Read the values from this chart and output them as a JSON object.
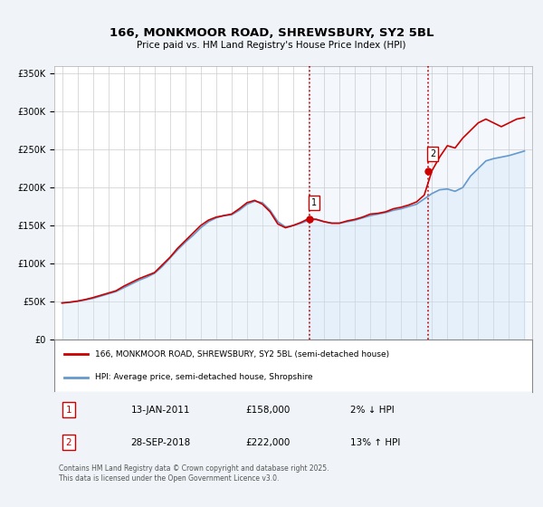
{
  "title": "166, MONKMOOR ROAD, SHREWSBURY, SY2 5BL",
  "subtitle": "Price paid vs. HM Land Registry's House Price Index (HPI)",
  "background_color": "#f0f4f8",
  "plot_bg_color": "#ffffff",
  "hpi_fill_color": "#d0e8f8",
  "red_color": "#cc0000",
  "blue_color": "#6699cc",
  "marker_color": "#cc0000",
  "vline_color": "#cc0000",
  "grid_color": "#cccccc",
  "ylim": [
    0,
    360000
  ],
  "yticks": [
    0,
    50000,
    100000,
    150000,
    200000,
    250000,
    300000,
    350000
  ],
  "ytick_labels": [
    "£0",
    "£50K",
    "£100K",
    "£150K",
    "£200K",
    "£250K",
    "£300K",
    "£350K"
  ],
  "xlim_start": 1994.5,
  "xlim_end": 2025.5,
  "xticks": [
    1995,
    1996,
    1997,
    1998,
    1999,
    2000,
    2001,
    2002,
    2003,
    2004,
    2005,
    2006,
    2007,
    2008,
    2009,
    2010,
    2011,
    2012,
    2013,
    2014,
    2015,
    2016,
    2017,
    2018,
    2019,
    2020,
    2021,
    2022,
    2023,
    2024,
    2025
  ],
  "event1_x": 2011.04,
  "event1_y": 158000,
  "event2_x": 2018.75,
  "event2_y": 222000,
  "legend_red_label": "166, MONKMOOR ROAD, SHREWSBURY, SY2 5BL (semi-detached house)",
  "legend_blue_label": "HPI: Average price, semi-detached house, Shropshire",
  "table_row1": [
    "1",
    "13-JAN-2011",
    "£158,000",
    "2% ↓ HPI"
  ],
  "table_row2": [
    "2",
    "28-SEP-2018",
    "£222,000",
    "13% ↑ HPI"
  ],
  "footer": "Contains HM Land Registry data © Crown copyright and database right 2025.\nThis data is licensed under the Open Government Licence v3.0.",
  "hpi_data_x": [
    1995.0,
    1995.5,
    1996.0,
    1996.5,
    1997.0,
    1997.5,
    1998.0,
    1998.5,
    1999.0,
    1999.5,
    2000.0,
    2000.5,
    2001.0,
    2001.5,
    2002.0,
    2002.5,
    2003.0,
    2003.5,
    2004.0,
    2004.5,
    2005.0,
    2005.5,
    2006.0,
    2006.5,
    2007.0,
    2007.5,
    2008.0,
    2008.5,
    2009.0,
    2009.5,
    2010.0,
    2010.5,
    2011.0,
    2011.5,
    2012.0,
    2012.5,
    2013.0,
    2013.5,
    2014.0,
    2014.5,
    2015.0,
    2015.5,
    2016.0,
    2016.5,
    2017.0,
    2017.5,
    2018.0,
    2018.5,
    2019.0,
    2019.5,
    2020.0,
    2020.5,
    2021.0,
    2021.5,
    2022.0,
    2022.5,
    2023.0,
    2023.5,
    2024.0,
    2024.5,
    2025.0
  ],
  "hpi_data_y": [
    48000,
    49000,
    50000,
    52000,
    54000,
    57000,
    60000,
    63000,
    68000,
    73000,
    78000,
    82000,
    87000,
    96000,
    107000,
    118000,
    128000,
    137000,
    147000,
    155000,
    160000,
    163000,
    164000,
    170000,
    178000,
    182000,
    180000,
    170000,
    155000,
    148000,
    150000,
    153000,
    157000,
    158000,
    155000,
    153000,
    153000,
    155000,
    157000,
    160000,
    163000,
    165000,
    167000,
    170000,
    172000,
    175000,
    178000,
    185000,
    192000,
    197000,
    198000,
    195000,
    200000,
    215000,
    225000,
    235000,
    238000,
    240000,
    242000,
    245000,
    248000
  ],
  "price_data_x": [
    1995.0,
    1995.5,
    1996.0,
    1996.5,
    1997.0,
    1997.5,
    1998.0,
    1998.5,
    1999.0,
    1999.5,
    2000.0,
    2000.5,
    2001.0,
    2001.5,
    2002.0,
    2002.5,
    2003.0,
    2003.5,
    2004.0,
    2004.5,
    2005.0,
    2005.5,
    2006.0,
    2006.5,
    2007.0,
    2007.5,
    2008.0,
    2008.5,
    2009.0,
    2009.5,
    2010.0,
    2010.5,
    2011.0,
    2011.5,
    2012.0,
    2012.5,
    2013.0,
    2013.5,
    2014.0,
    2014.5,
    2015.0,
    2015.5,
    2016.0,
    2016.5,
    2017.0,
    2017.5,
    2018.0,
    2018.5,
    2019.0,
    2019.5,
    2020.0,
    2020.5,
    2021.0,
    2021.5,
    2022.0,
    2022.5,
    2023.0,
    2023.5,
    2024.0,
    2024.5,
    2025.0
  ],
  "price_data_y": [
    48000,
    49000,
    50500,
    52500,
    55000,
    58000,
    61000,
    64000,
    70000,
    75000,
    80000,
    84000,
    88000,
    98000,
    108000,
    120000,
    130000,
    140000,
    150000,
    157000,
    161000,
    163000,
    165000,
    172000,
    180000,
    183000,
    178000,
    168000,
    152000,
    147000,
    150000,
    154000,
    159000,
    158000,
    155000,
    153000,
    153000,
    156000,
    158000,
    161000,
    165000,
    166000,
    168000,
    172000,
    174000,
    177000,
    181000,
    190000,
    222000,
    240000,
    255000,
    252000,
    265000,
    275000,
    285000,
    290000,
    285000,
    280000,
    285000,
    290000,
    292000
  ]
}
